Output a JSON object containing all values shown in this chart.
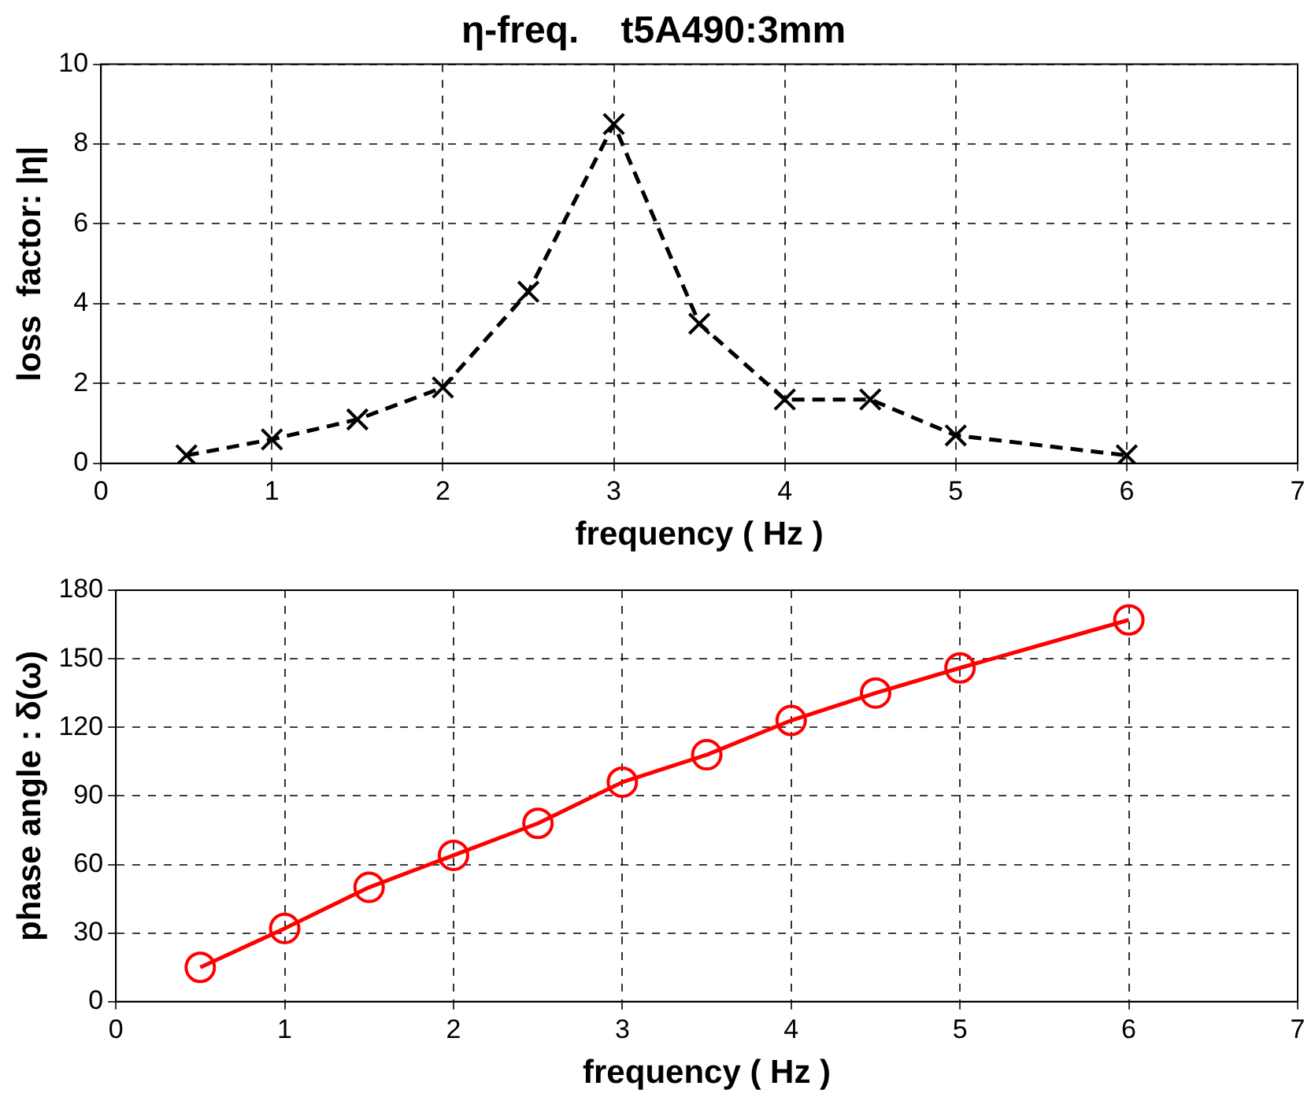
{
  "chart_data": [
    {
      "type": "line",
      "title": "η-freq.    t5A490:3mm",
      "xlabel": "frequency ( Hz )",
      "ylabel": "loss  factor: |η|",
      "x": [
        0.5,
        1,
        1.5,
        2,
        2.5,
        3,
        3.5,
        4,
        4.5,
        5,
        6
      ],
      "series": [
        {
          "color": "#000000",
          "values": [
            0.2,
            0.6,
            1.1,
            1.9,
            4.3,
            8.5,
            3.5,
            1.6,
            1.6,
            0.7,
            0.2
          ]
        }
      ],
      "xlim": [
        0,
        7
      ],
      "xticks": [
        0,
        1,
        2,
        3,
        4,
        5,
        6,
        7
      ],
      "ylim": [
        0,
        10
      ],
      "yticks": [
        0,
        2,
        4,
        6,
        8,
        10
      ],
      "grid": true,
      "marker": "cross",
      "line_style": "dashed"
    },
    {
      "type": "line",
      "xlabel": "frequency ( Hz )",
      "ylabel": "phase angle : δ(ω)",
      "x": [
        0.5,
        1,
        1.5,
        2,
        2.5,
        3,
        3.5,
        4,
        4.5,
        5,
        6
      ],
      "series": [
        {
          "color": "#ff0000",
          "values": [
            15,
            32,
            50,
            64,
            78,
            96,
            108,
            123,
            135,
            146,
            167
          ]
        }
      ],
      "xlim": [
        0,
        7
      ],
      "xticks": [
        0,
        1,
        2,
        3,
        4,
        5,
        6,
        7
      ],
      "ylim": [
        0,
        180
      ],
      "yticks": [
        0,
        30,
        60,
        90,
        120,
        150,
        180
      ],
      "grid": true,
      "marker": "circle",
      "line_style": "solid"
    }
  ]
}
